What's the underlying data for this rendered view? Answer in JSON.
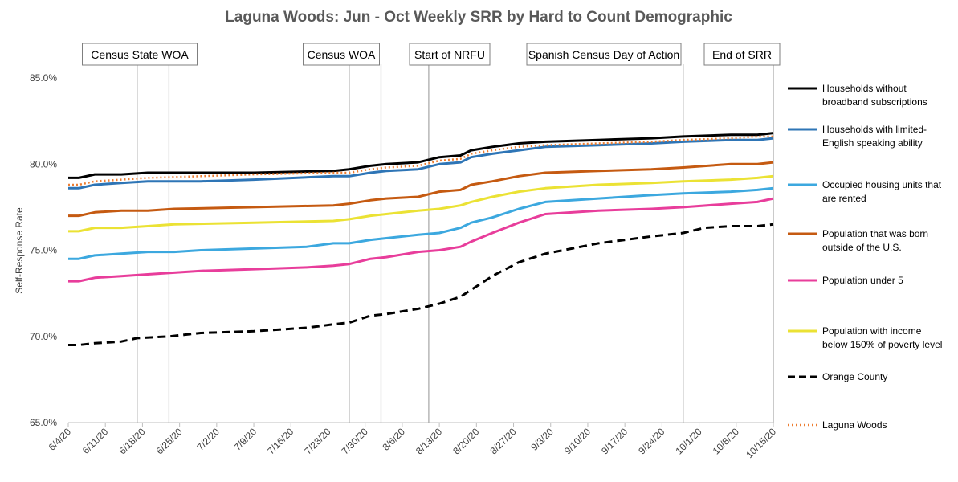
{
  "chart_data": {
    "type": "line",
    "title": "Laguna Woods: Jun - Oct Weekly SRR by Hard to Count Demographic",
    "ylabel": "Self-Response Rate",
    "xlabel": "",
    "ylim": [
      65.0,
      85.0
    ],
    "yticks": [
      "65.0%",
      "70.0%",
      "75.0%",
      "80.0%",
      "85.0%"
    ],
    "ytick_values": [
      65,
      70,
      75,
      80,
      85
    ],
    "x_start": "6/4/20",
    "x_end": "10/15/20",
    "x_days": 133,
    "xticks": [
      "6/4/20",
      "6/11/20",
      "6/18/20",
      "6/25/20",
      "7/2/20",
      "7/9/20",
      "7/16/20",
      "7/23/20",
      "7/30/20",
      "8/6/20",
      "8/13/20",
      "8/20/20",
      "8/27/20",
      "9/3/20",
      "9/10/20",
      "9/17/20",
      "9/24/20",
      "10/1/20",
      "10/8/20",
      "10/15/20"
    ],
    "annotations": [
      {
        "label": "Census State WOA",
        "lines_at_day": [
          13,
          19
        ]
      },
      {
        "label": "Census WOA",
        "lines_at_day": [
          53,
          59
        ]
      },
      {
        "label": "Start of NRFU",
        "lines_at_day": [
          68
        ]
      },
      {
        "label": "Spanish Census Day of Action",
        "lines_at_day": [
          116
        ]
      },
      {
        "label": "End of SRR",
        "lines_at_day": [
          133
        ]
      }
    ],
    "legend_position": "right",
    "series": [
      {
        "name": "Households without broadband subscriptions",
        "legend_lines": [
          "Households without",
          "broadband subscriptions"
        ],
        "color": "#000000",
        "dash": "solid",
        "points": [
          [
            0,
            79.2
          ],
          [
            2,
            79.2
          ],
          [
            5,
            79.4
          ],
          [
            10,
            79.4
          ],
          [
            15,
            79.5
          ],
          [
            25,
            79.5
          ],
          [
            35,
            79.5
          ],
          [
            50,
            79.6
          ],
          [
            53,
            79.7
          ],
          [
            57,
            79.9
          ],
          [
            60,
            80.0
          ],
          [
            66,
            80.1
          ],
          [
            70,
            80.4
          ],
          [
            74,
            80.5
          ],
          [
            76,
            80.8
          ],
          [
            80,
            81.0
          ],
          [
            85,
            81.2
          ],
          [
            90,
            81.3
          ],
          [
            100,
            81.4
          ],
          [
            110,
            81.5
          ],
          [
            116,
            81.6
          ],
          [
            125,
            81.7
          ],
          [
            130,
            81.7
          ],
          [
            133,
            81.8
          ]
        ]
      },
      {
        "name": "Households with limited-English speaking ability",
        "legend_lines": [
          "Households with limited-",
          "English speaking ability"
        ],
        "color": "#2e75b6",
        "dash": "solid",
        "points": [
          [
            0,
            78.6
          ],
          [
            2,
            78.6
          ],
          [
            5,
            78.8
          ],
          [
            10,
            78.9
          ],
          [
            15,
            79.0
          ],
          [
            25,
            79.0
          ],
          [
            35,
            79.1
          ],
          [
            50,
            79.3
          ],
          [
            53,
            79.3
          ],
          [
            57,
            79.5
          ],
          [
            60,
            79.6
          ],
          [
            66,
            79.7
          ],
          [
            70,
            80.0
          ],
          [
            74,
            80.1
          ],
          [
            76,
            80.4
          ],
          [
            80,
            80.6
          ],
          [
            85,
            80.8
          ],
          [
            90,
            81.0
          ],
          [
            100,
            81.1
          ],
          [
            110,
            81.2
          ],
          [
            116,
            81.3
          ],
          [
            125,
            81.4
          ],
          [
            130,
            81.4
          ],
          [
            133,
            81.5
          ]
        ]
      },
      {
        "name": "Occupied housing units that are rented",
        "legend_lines": [
          "Occupied housing units that",
          "are rented"
        ],
        "color": "#3ca8df",
        "dash": "solid",
        "points": [
          [
            0,
            74.5
          ],
          [
            2,
            74.5
          ],
          [
            5,
            74.7
          ],
          [
            10,
            74.8
          ],
          [
            15,
            74.9
          ],
          [
            20,
            74.9
          ],
          [
            25,
            75.0
          ],
          [
            35,
            75.1
          ],
          [
            45,
            75.2
          ],
          [
            50,
            75.4
          ],
          [
            53,
            75.4
          ],
          [
            57,
            75.6
          ],
          [
            60,
            75.7
          ],
          [
            66,
            75.9
          ],
          [
            70,
            76.0
          ],
          [
            74,
            76.3
          ],
          [
            76,
            76.6
          ],
          [
            80,
            76.9
          ],
          [
            85,
            77.4
          ],
          [
            90,
            77.8
          ],
          [
            100,
            78.0
          ],
          [
            110,
            78.2
          ],
          [
            116,
            78.3
          ],
          [
            125,
            78.4
          ],
          [
            130,
            78.5
          ],
          [
            133,
            78.6
          ]
        ]
      },
      {
        "name": "Population that was born outside of the U.S.",
        "legend_lines": [
          "Population that was born",
          "outside of the U.S."
        ],
        "color": "#c55a11",
        "dash": "solid",
        "points": [
          [
            0,
            77.0
          ],
          [
            2,
            77.0
          ],
          [
            5,
            77.2
          ],
          [
            10,
            77.3
          ],
          [
            15,
            77.3
          ],
          [
            20,
            77.4
          ],
          [
            35,
            77.5
          ],
          [
            50,
            77.6
          ],
          [
            53,
            77.7
          ],
          [
            57,
            77.9
          ],
          [
            60,
            78.0
          ],
          [
            66,
            78.1
          ],
          [
            70,
            78.4
          ],
          [
            74,
            78.5
          ],
          [
            76,
            78.8
          ],
          [
            80,
            79.0
          ],
          [
            85,
            79.3
          ],
          [
            90,
            79.5
          ],
          [
            100,
            79.6
          ],
          [
            110,
            79.7
          ],
          [
            116,
            79.8
          ],
          [
            125,
            80.0
          ],
          [
            130,
            80.0
          ],
          [
            133,
            80.1
          ]
        ]
      },
      {
        "name": "Population under 5",
        "legend_lines": [
          "Population under 5"
        ],
        "color": "#e83d9b",
        "dash": "solid",
        "points": [
          [
            0,
            73.2
          ],
          [
            2,
            73.2
          ],
          [
            5,
            73.4
          ],
          [
            10,
            73.5
          ],
          [
            15,
            73.6
          ],
          [
            20,
            73.7
          ],
          [
            25,
            73.8
          ],
          [
            35,
            73.9
          ],
          [
            45,
            74.0
          ],
          [
            50,
            74.1
          ],
          [
            53,
            74.2
          ],
          [
            57,
            74.5
          ],
          [
            60,
            74.6
          ],
          [
            66,
            74.9
          ],
          [
            70,
            75.0
          ],
          [
            74,
            75.2
          ],
          [
            76,
            75.5
          ],
          [
            80,
            76.0
          ],
          [
            85,
            76.6
          ],
          [
            90,
            77.1
          ],
          [
            100,
            77.3
          ],
          [
            110,
            77.4
          ],
          [
            116,
            77.5
          ],
          [
            125,
            77.7
          ],
          [
            130,
            77.8
          ],
          [
            133,
            78.0
          ]
        ]
      },
      {
        "name": "Population with income below 150% of poverty level",
        "legend_lines": [
          "Population with income",
          "below 150% of poverty level"
        ],
        "color": "#ebe234",
        "dash": "solid",
        "points": [
          [
            0,
            76.1
          ],
          [
            2,
            76.1
          ],
          [
            5,
            76.3
          ],
          [
            10,
            76.3
          ],
          [
            15,
            76.4
          ],
          [
            20,
            76.5
          ],
          [
            35,
            76.6
          ],
          [
            50,
            76.7
          ],
          [
            53,
            76.8
          ],
          [
            57,
            77.0
          ],
          [
            60,
            77.1
          ],
          [
            66,
            77.3
          ],
          [
            70,
            77.4
          ],
          [
            74,
            77.6
          ],
          [
            76,
            77.8
          ],
          [
            80,
            78.1
          ],
          [
            85,
            78.4
          ],
          [
            90,
            78.6
          ],
          [
            100,
            78.8
          ],
          [
            110,
            78.9
          ],
          [
            116,
            79.0
          ],
          [
            125,
            79.1
          ],
          [
            130,
            79.2
          ],
          [
            133,
            79.3
          ]
        ]
      },
      {
        "name": "Orange County",
        "legend_lines": [
          "Orange County"
        ],
        "color": "#000000",
        "dash": "dashed",
        "points": [
          [
            0,
            69.5
          ],
          [
            2,
            69.5
          ],
          [
            5,
            69.6
          ],
          [
            10,
            69.7
          ],
          [
            13,
            69.9
          ],
          [
            19,
            70.0
          ],
          [
            25,
            70.2
          ],
          [
            35,
            70.3
          ],
          [
            45,
            70.5
          ],
          [
            50,
            70.7
          ],
          [
            53,
            70.8
          ],
          [
            57,
            71.2
          ],
          [
            60,
            71.3
          ],
          [
            66,
            71.6
          ],
          [
            70,
            71.9
          ],
          [
            74,
            72.3
          ],
          [
            76,
            72.7
          ],
          [
            80,
            73.5
          ],
          [
            85,
            74.3
          ],
          [
            90,
            74.8
          ],
          [
            95,
            75.1
          ],
          [
            100,
            75.4
          ],
          [
            105,
            75.6
          ],
          [
            110,
            75.8
          ],
          [
            116,
            76.0
          ],
          [
            120,
            76.3
          ],
          [
            125,
            76.4
          ],
          [
            130,
            76.4
          ],
          [
            133,
            76.5
          ]
        ]
      },
      {
        "name": "Laguna Woods",
        "legend_lines": [
          "Laguna Woods"
        ],
        "color": "#ed7d31",
        "dash": "dotted",
        "points": [
          [
            0,
            78.8
          ],
          [
            2,
            78.8
          ],
          [
            5,
            79.0
          ],
          [
            10,
            79.1
          ],
          [
            15,
            79.2
          ],
          [
            25,
            79.3
          ],
          [
            35,
            79.4
          ],
          [
            50,
            79.5
          ],
          [
            53,
            79.5
          ],
          [
            57,
            79.7
          ],
          [
            60,
            79.8
          ],
          [
            66,
            79.9
          ],
          [
            70,
            80.2
          ],
          [
            74,
            80.3
          ],
          [
            76,
            80.6
          ],
          [
            80,
            80.8
          ],
          [
            85,
            81.0
          ],
          [
            90,
            81.1
          ],
          [
            100,
            81.2
          ],
          [
            110,
            81.3
          ],
          [
            116,
            81.4
          ],
          [
            125,
            81.5
          ],
          [
            130,
            81.6
          ],
          [
            133,
            81.6
          ]
        ]
      }
    ]
  }
}
